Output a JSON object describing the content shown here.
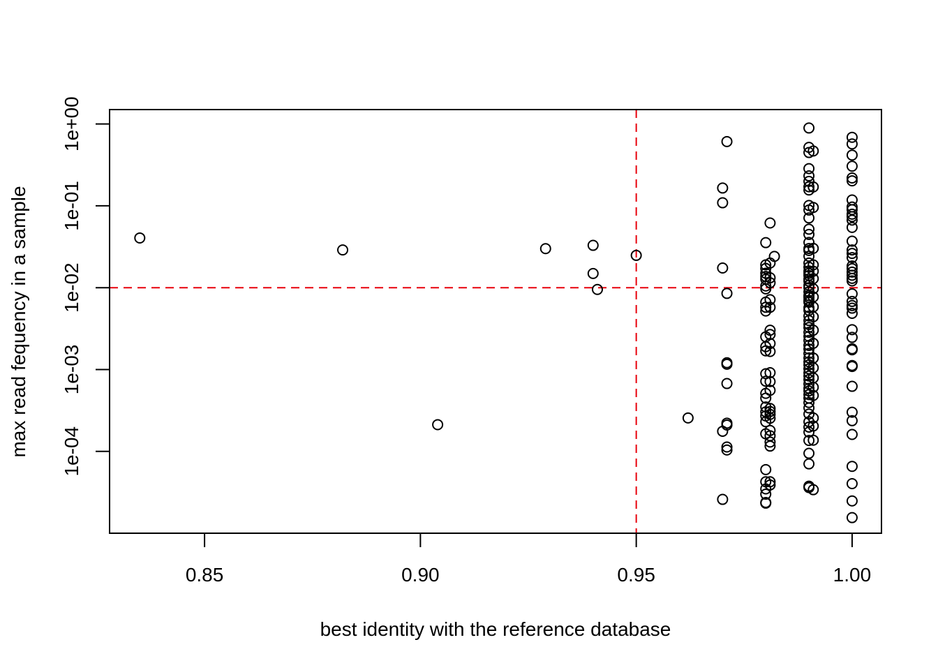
{
  "chart_data": {
    "type": "scatter",
    "title": "",
    "xlabel": "best identity with the reference database",
    "ylabel": "max read fequency in a sample",
    "xlim": [
      0.828,
      1.0068
    ],
    "ylog": true,
    "ylim": [
      1e-05,
      1.5
    ],
    "xticks": [
      {
        "value": 0.85,
        "label": "0.85"
      },
      {
        "value": 0.9,
        "label": "0.90"
      },
      {
        "value": 0.95,
        "label": "0.95"
      },
      {
        "value": 1.0,
        "label": "1.00"
      }
    ],
    "yticks": [
      {
        "value": 0.0001,
        "label": "1e-04"
      },
      {
        "value": 0.001,
        "label": "1e-03"
      },
      {
        "value": 0.01,
        "label": "1e-02"
      },
      {
        "value": 0.1,
        "label": "1e-01"
      },
      {
        "value": 1,
        "label": "1e+00"
      }
    ],
    "reference_lines": [
      {
        "axis": "x",
        "value": 0.95,
        "color": "#e8000b",
        "style": "dashed"
      },
      {
        "axis": "y",
        "value": 0.01,
        "color": "#e8000b",
        "style": "dashed"
      }
    ],
    "point_style": {
      "shape": "open-circle",
      "color": "#000000"
    },
    "points": [
      [
        0.835,
        0.0405
      ],
      [
        0.882,
        0.0289
      ],
      [
        0.904,
        0.000212
      ],
      [
        0.929,
        0.03
      ],
      [
        0.94,
        0.0329
      ],
      [
        0.94,
        0.0149
      ],
      [
        0.941,
        0.00951
      ],
      [
        0.95,
        0.0248
      ],
      [
        0.962,
        0.000256
      ],
      [
        0.97,
        0.165
      ],
      [
        0.97,
        0.109
      ],
      [
        0.97,
        0.0174
      ],
      [
        0.97,
        0.000176
      ],
      [
        0.97,
        2.59e-05
      ],
      [
        0.971,
        0.61
      ],
      [
        0.971,
        0.00851
      ],
      [
        0.971,
        0.00121
      ],
      [
        0.971,
        0.00116
      ],
      [
        0.971,
        0.000674
      ],
      [
        0.971,
        0.000221
      ],
      [
        0.971,
        0.00021
      ],
      [
        0.971,
        0.000113
      ],
      [
        0.971,
        0.000104
      ],
      [
        0.98,
        0.0355
      ],
      [
        0.98,
        0.019
      ],
      [
        0.98,
        0.0172
      ],
      [
        0.98,
        0.015
      ],
      [
        0.98,
        0.0137
      ],
      [
        0.98,
        0.0127
      ],
      [
        0.98,
        0.0105
      ],
      [
        0.98,
        0.00968
      ],
      [
        0.98,
        0.00666
      ],
      [
        0.98,
        0.00576
      ],
      [
        0.98,
        0.00519
      ],
      [
        0.98,
        0.00251
      ],
      [
        0.98,
        0.0019
      ],
      [
        0.98,
        0.00169
      ],
      [
        0.98,
        0.000888
      ],
      [
        0.98,
        0.00072
      ],
      [
        0.98,
        0.000511
      ],
      [
        0.98,
        0.000447
      ],
      [
        0.98,
        0.000349
      ],
      [
        0.98,
        0.000304
      ],
      [
        0.98,
        0.000271
      ],
      [
        0.98,
        0.00023
      ],
      [
        0.98,
        0.000164
      ],
      [
        0.98,
        5.99e-05
      ],
      [
        0.98,
        4.25e-05
      ],
      [
        0.98,
        3.48e-05
      ],
      [
        0.98,
        3e-05
      ],
      [
        0.98,
        2.37e-05
      ],
      [
        0.98,
        2.33e-05
      ],
      [
        0.981,
        0.0617
      ],
      [
        0.981,
        0.02
      ],
      [
        0.981,
        0.0132
      ],
      [
        0.981,
        0.0115
      ],
      [
        0.981,
        0.00713
      ],
      [
        0.981,
        0.00576
      ],
      [
        0.981,
        0.00302
      ],
      [
        0.981,
        0.00268
      ],
      [
        0.981,
        0.00208
      ],
      [
        0.981,
        0.00166
      ],
      [
        0.981,
        0.000915
      ],
      [
        0.981,
        0.000712
      ],
      [
        0.981,
        0.000557
      ],
      [
        0.981,
        0.000334
      ],
      [
        0.981,
        0.000307
      ],
      [
        0.981,
        0.000283
      ],
      [
        0.981,
        0.000254
      ],
      [
        0.981,
        0.00018
      ],
      [
        0.981,
        0.000155
      ],
      [
        0.981,
        0.00013
      ],
      [
        0.981,
        0.000116
      ],
      [
        0.981,
        4.25e-05
      ],
      [
        0.981,
        3.89e-05
      ],
      [
        0.982,
        0.0241
      ],
      [
        0.99,
        0.893
      ],
      [
        0.99,
        0.518
      ],
      [
        0.99,
        0.448
      ],
      [
        0.99,
        0.285
      ],
      [
        0.99,
        0.232
      ],
      [
        0.99,
        0.199
      ],
      [
        0.99,
        0.171
      ],
      [
        0.99,
        0.156
      ],
      [
        0.99,
        0.101
      ],
      [
        0.99,
        0.0889
      ],
      [
        0.99,
        0.0711
      ],
      [
        0.99,
        0.0518
      ],
      [
        0.99,
        0.0447
      ],
      [
        0.99,
        0.0357
      ],
      [
        0.99,
        0.0301
      ],
      [
        0.99,
        0.0285
      ],
      [
        0.99,
        0.0242
      ],
      [
        0.99,
        0.02
      ],
      [
        0.99,
        0.0178
      ],
      [
        0.99,
        0.016
      ],
      [
        0.99,
        0.015
      ],
      [
        0.99,
        0.0141
      ],
      [
        0.99,
        0.0128
      ],
      [
        0.99,
        0.012
      ],
      [
        0.99,
        0.0107
      ],
      [
        0.99,
        0.00998
      ],
      [
        0.99,
        0.00889
      ],
      [
        0.99,
        0.008
      ],
      [
        0.99,
        0.00758
      ],
      [
        0.99,
        0.007
      ],
      [
        0.99,
        0.00664
      ],
      [
        0.99,
        0.00571
      ],
      [
        0.99,
        0.00529
      ],
      [
        0.99,
        0.00451
      ],
      [
        0.99,
        0.00397
      ],
      [
        0.99,
        0.00355
      ],
      [
        0.99,
        0.00326
      ],
      [
        0.99,
        0.00285
      ],
      [
        0.99,
        0.00254
      ],
      [
        0.99,
        0.00227
      ],
      [
        0.99,
        0.00197
      ],
      [
        0.99,
        0.00178
      ],
      [
        0.99,
        0.00157
      ],
      [
        0.99,
        0.00139
      ],
      [
        0.99,
        0.00124
      ],
      [
        0.99,
        0.00114
      ],
      [
        0.99,
        0.00102
      ],
      [
        0.99,
        0.000913
      ],
      [
        0.99,
        0.000834
      ],
      [
        0.99,
        0.000753
      ],
      [
        0.99,
        0.000667
      ],
      [
        0.99,
        0.00059
      ],
      [
        0.99,
        0.000547
      ],
      [
        0.99,
        0.000494
      ],
      [
        0.99,
        0.000448
      ],
      [
        0.99,
        0.000395
      ],
      [
        0.99,
        0.000339
      ],
      [
        0.99,
        0.000286
      ],
      [
        0.99,
        0.00023
      ],
      [
        0.99,
        0.000198
      ],
      [
        0.99,
        0.000172
      ],
      [
        0.99,
        0.000136
      ],
      [
        0.99,
        9.46e-05
      ],
      [
        0.99,
        7.03e-05
      ],
      [
        0.99,
        3.75e-05
      ],
      [
        0.99,
        3.61e-05
      ],
      [
        0.991,
        0.468
      ],
      [
        0.991,
        0.17
      ],
      [
        0.991,
        0.0956
      ],
      [
        0.991,
        0.0302
      ],
      [
        0.991,
        0.019
      ],
      [
        0.991,
        0.0159
      ],
      [
        0.991,
        0.0129
      ],
      [
        0.991,
        0.0097
      ],
      [
        0.991,
        0.0077
      ],
      [
        0.991,
        0.00582
      ],
      [
        0.991,
        0.00441
      ],
      [
        0.991,
        0.00302
      ],
      [
        0.991,
        0.00209
      ],
      [
        0.991,
        0.00138
      ],
      [
        0.991,
        0.00105
      ],
      [
        0.991,
        0.000789
      ],
      [
        0.991,
        0.000607
      ],
      [
        0.991,
        0.000482
      ],
      [
        0.991,
        0.000256
      ],
      [
        0.991,
        0.000204
      ],
      [
        0.991,
        0.000137
      ],
      [
        0.991,
        3.4e-05
      ],
      [
        1.0,
        0.688
      ],
      [
        1.0,
        0.57
      ],
      [
        1.0,
        0.417
      ],
      [
        1.0,
        0.305
      ],
      [
        1.0,
        0.219
      ],
      [
        1.0,
        0.202
      ],
      [
        1.0,
        0.118
      ],
      [
        1.0,
        0.0968
      ],
      [
        1.0,
        0.0899
      ],
      [
        1.0,
        0.0791
      ],
      [
        1.0,
        0.0738
      ],
      [
        1.0,
        0.0669
      ],
      [
        1.0,
        0.0545
      ],
      [
        1.0,
        0.037
      ],
      [
        1.0,
        0.0289
      ],
      [
        1.0,
        0.0262
      ],
      [
        1.0,
        0.0233
      ],
      [
        1.0,
        0.0184
      ],
      [
        1.0,
        0.0171
      ],
      [
        1.0,
        0.0155
      ],
      [
        1.0,
        0.0142
      ],
      [
        1.0,
        0.013
      ],
      [
        1.0,
        0.0121
      ],
      [
        1.0,
        0.00841
      ],
      [
        1.0,
        0.00679
      ],
      [
        1.0,
        0.00605
      ],
      [
        1.0,
        0.00562
      ],
      [
        1.0,
        0.00486
      ],
      [
        1.0,
        0.00307
      ],
      [
        1.0,
        0.00247
      ],
      [
        1.0,
        0.00179
      ],
      [
        1.0,
        0.00174
      ],
      [
        1.0,
        0.00112
      ],
      [
        1.0,
        0.00109
      ],
      [
        1.0,
        0.000623
      ],
      [
        1.0,
        0.000301
      ],
      [
        1.0,
        0.000237
      ],
      [
        1.0,
        0.000161
      ],
      [
        1.0,
        6.56e-05
      ],
      [
        1.0,
        4.03e-05
      ],
      [
        1.0,
        2.48e-05
      ],
      [
        1.0,
        1.55e-05
      ]
    ]
  }
}
